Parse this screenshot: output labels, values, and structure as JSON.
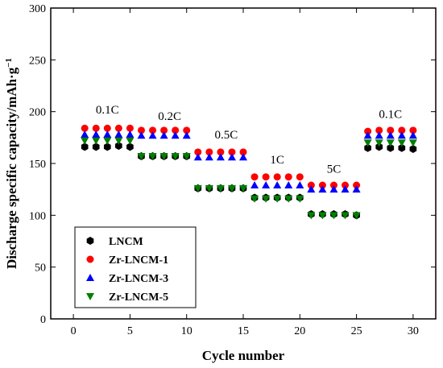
{
  "chart_data": {
    "type": "scatter",
    "xlabel": "Cycle number",
    "ylabel": "Discharge specific capacity/mAh·g",
    "ylabel_sup": "−1",
    "xlim": [
      -2,
      32
    ],
    "ylim": [
      0,
      300
    ],
    "xticks": [
      0,
      5,
      10,
      15,
      20,
      25,
      30
    ],
    "yticks": [
      0,
      50,
      100,
      150,
      200,
      250,
      300
    ],
    "grid": false,
    "legend_position": "bottom-left",
    "rate_labels": [
      {
        "text": "0.1C",
        "x": 3,
        "y": 198
      },
      {
        "text": "0.2C",
        "x": 8.5,
        "y": 192
      },
      {
        "text": "0.5C",
        "x": 13.5,
        "y": 174
      },
      {
        "text": "1C",
        "x": 18,
        "y": 150
      },
      {
        "text": "5C",
        "x": 23,
        "y": 141
      },
      {
        "text": "0.1C",
        "x": 28,
        "y": 194
      }
    ],
    "series": [
      {
        "name": "LNCM",
        "marker": "hexagon",
        "color": "#000000",
        "x": [
          1,
          2,
          3,
          4,
          5,
          6,
          7,
          8,
          9,
          10,
          11,
          12,
          13,
          14,
          15,
          16,
          17,
          18,
          19,
          20,
          21,
          22,
          23,
          24,
          25,
          26,
          27,
          28,
          29,
          30
        ],
        "values": [
          166,
          166,
          166,
          167,
          166,
          157,
          157,
          157,
          157,
          157,
          126,
          126,
          126,
          126,
          126,
          117,
          117,
          117,
          117,
          117,
          101,
          101,
          101,
          101,
          100,
          165,
          166,
          165,
          165,
          164
        ]
      },
      {
        "name": "Zr-LNCM-1",
        "marker": "circle",
        "color": "#ff0000",
        "x": [
          1,
          2,
          3,
          4,
          5,
          6,
          7,
          8,
          9,
          10,
          11,
          12,
          13,
          14,
          15,
          16,
          17,
          18,
          19,
          20,
          21,
          22,
          23,
          24,
          25,
          26,
          27,
          28,
          29,
          30
        ],
        "values": [
          184,
          184,
          184,
          184,
          184,
          182,
          182,
          182,
          182,
          182,
          161,
          161,
          161,
          161,
          161,
          137,
          137,
          137,
          137,
          137,
          129,
          129,
          129,
          129,
          129,
          181,
          182,
          182,
          182,
          182
        ]
      },
      {
        "name": "Zr-LNCM-3",
        "marker": "triangle-up",
        "color": "#0000ff",
        "x": [
          1,
          2,
          3,
          4,
          5,
          6,
          7,
          8,
          9,
          10,
          11,
          12,
          13,
          14,
          15,
          16,
          17,
          18,
          19,
          20,
          21,
          22,
          23,
          24,
          25,
          26,
          27,
          28,
          29,
          30
        ],
        "values": [
          178,
          178,
          178,
          178,
          178,
          177,
          177,
          177,
          177,
          177,
          156,
          156,
          156,
          156,
          156,
          129,
          129,
          129,
          129,
          129,
          125,
          125,
          125,
          125,
          125,
          177,
          177,
          177,
          177,
          177
        ]
      },
      {
        "name": "Zr-LNCM-5",
        "marker": "triangle-down",
        "color": "#008000",
        "x": [
          1,
          2,
          3,
          4,
          5,
          6,
          7,
          8,
          9,
          10,
          11,
          12,
          13,
          14,
          15,
          16,
          17,
          18,
          19,
          20,
          21,
          22,
          23,
          24,
          25,
          26,
          27,
          28,
          29,
          30
        ],
        "values": [
          172,
          172,
          172,
          172,
          172,
          157,
          157,
          157,
          157,
          157,
          126,
          126,
          126,
          126,
          126,
          116,
          116,
          116,
          116,
          116,
          100,
          100,
          100,
          100,
          100,
          170,
          170,
          170,
          170,
          170
        ]
      }
    ]
  }
}
